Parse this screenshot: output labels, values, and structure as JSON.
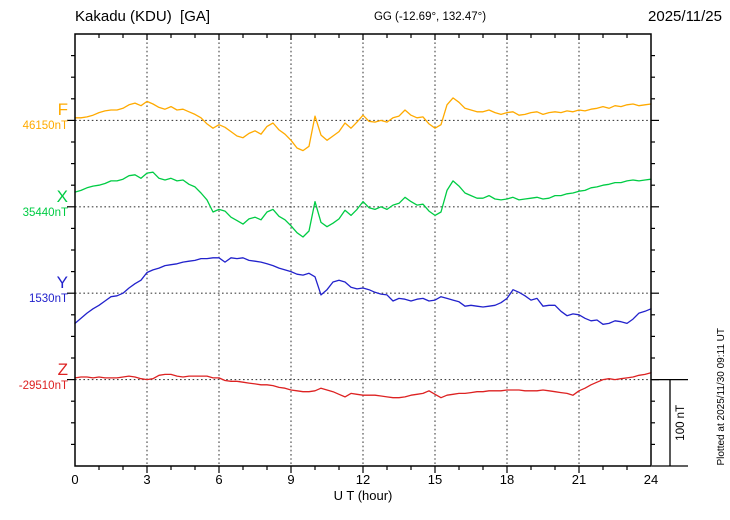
{
  "header": {
    "station": "Kakadu (KDU)  [GA]",
    "geographic": "GG (-12.69°, 132.47°)",
    "date": "2025/11/25"
  },
  "footer": {
    "plotted_note": "Plotted at 2025/11/30 09:11 UT"
  },
  "scale_bar": {
    "label": "100 nT",
    "span_nT": 100
  },
  "x_axis": {
    "label": "U T (hour)",
    "major_ticks": [
      0,
      3,
      6,
      9,
      12,
      15,
      18,
      21,
      24
    ],
    "minor_step_hours": 1,
    "range_hours": [
      0,
      24
    ]
  },
  "style": {
    "axis_color": "#000000",
    "grid_color": "#444444",
    "grid_style": "dotted"
  },
  "chart_data": {
    "type": "line",
    "title": "Kakadu (KDU)  [GA]",
    "subtitle": "GG (-12.69°, 132.47°)",
    "date": "2025/11/25",
    "xlabel": "U T (hour)",
    "x_range_hours": [
      0,
      24
    ],
    "x_sample_step_hours": 0.25,
    "y_divisions_nT": 25,
    "scalebar_nT": 100,
    "grid": "dotted vertical lines every 3 h; dotted horizontal line at each channel baseline",
    "legend_position": "left margin, one colored label per channel",
    "note": "offsets_nT are deviations from baseline_nT, sampled every 0.25 hour, 97 points per channel",
    "series": [
      {
        "id": "F",
        "label": "F",
        "baseline_label": "46150nT",
        "baseline_nT": 46150,
        "color": "#ffaa00",
        "offsets_nT": [
          3,
          3,
          4,
          6,
          9,
          11,
          12,
          12,
          14,
          18,
          20,
          17,
          22,
          19,
          15,
          13,
          16,
          12,
          13,
          10,
          7,
          3,
          -4,
          -9,
          -5,
          -8,
          -13,
          -18,
          -20,
          -15,
          -12,
          -16,
          -7,
          -3,
          -11,
          -16,
          -23,
          -32,
          -35,
          -30,
          5,
          -17,
          -23,
          -18,
          -13,
          -3,
          -9,
          -2,
          6,
          -1,
          -2,
          0,
          -2,
          3,
          5,
          12,
          6,
          3,
          4,
          -4,
          -9,
          -5,
          18,
          26,
          21,
          14,
          12,
          10,
          10,
          12,
          9,
          7,
          9,
          10,
          6,
          7,
          9,
          10,
          7,
          9,
          10,
          9,
          11,
          10,
          12,
          11,
          13,
          14,
          16,
          14,
          17,
          16,
          18,
          19,
          17,
          18,
          19
        ]
      },
      {
        "id": "X",
        "label": "X",
        "baseline_label": "35440nT",
        "baseline_nT": 35440,
        "color": "#00cc44",
        "offsets_nT": [
          17,
          19,
          22,
          24,
          25,
          27,
          30,
          30,
          32,
          36,
          37,
          33,
          39,
          40,
          33,
          31,
          33,
          30,
          31,
          26,
          23,
          16,
          8,
          -6,
          -3,
          -5,
          -12,
          -16,
          -20,
          -14,
          -12,
          -15,
          -6,
          -3,
          -11,
          -15,
          -22,
          -30,
          -35,
          -28,
          6,
          -18,
          -23,
          -19,
          -14,
          -4,
          -10,
          -3,
          6,
          -1,
          -3,
          0,
          -3,
          2,
          4,
          11,
          6,
          2,
          3,
          -5,
          -10,
          -6,
          19,
          30,
          24,
          16,
          13,
          10,
          10,
          13,
          9,
          8,
          9,
          11,
          8,
          9,
          10,
          11,
          9,
          10,
          13,
          13,
          15,
          16,
          18,
          19,
          22,
          23,
          25,
          26,
          28,
          28,
          30,
          31,
          30,
          31,
          32
        ]
      },
      {
        "id": "Y",
        "label": "Y",
        "baseline_label": "1530nT",
        "baseline_nT": 1530,
        "color": "#2222cc",
        "offsets_nT": [
          -35,
          -29,
          -23,
          -18,
          -14,
          -9,
          -4,
          -3,
          0,
          6,
          11,
          15,
          24,
          27,
          29,
          32,
          33,
          34,
          36,
          37,
          38,
          40,
          40,
          41,
          41,
          36,
          41,
          40,
          41,
          38,
          37,
          36,
          34,
          32,
          29,
          27,
          25,
          22,
          21,
          23,
          19,
          -2,
          4,
          13,
          15,
          13,
          7,
          5,
          6,
          4,
          1,
          -1,
          -2,
          -9,
          -6,
          -7,
          -9,
          -7,
          -6,
          -9,
          -8,
          -4,
          -6,
          -8,
          -10,
          -15,
          -14,
          -15,
          -16,
          -15,
          -14,
          -11,
          -6,
          4,
          1,
          -3,
          -8,
          -6,
          -15,
          -14,
          -14,
          -21,
          -26,
          -24,
          -25,
          -29,
          -32,
          -31,
          -36,
          -35,
          -32,
          -33,
          -35,
          -30,
          -23,
          -21,
          -18
        ]
      },
      {
        "id": "Z",
        "label": "Z",
        "baseline_label": "-29510nT",
        "baseline_nT": -29510,
        "color": "#dd2222",
        "offsets_nT": [
          2,
          3,
          3,
          2,
          3,
          2,
          2,
          2,
          3,
          4,
          3,
          1,
          0,
          1,
          5,
          6,
          6,
          4,
          3,
          4,
          4,
          4,
          4,
          2,
          2,
          -1,
          -2,
          -2,
          -3,
          -4,
          -5,
          -6,
          -6,
          -7,
          -9,
          -10,
          -12,
          -13,
          -14,
          -14,
          -13,
          -10,
          -12,
          -14,
          -17,
          -20,
          -16,
          -17,
          -18,
          -18,
          -18,
          -19,
          -20,
          -21,
          -21,
          -20,
          -18,
          -17,
          -16,
          -13,
          -17,
          -21,
          -18,
          -17,
          -16,
          -16,
          -15,
          -14,
          -14,
          -13,
          -13,
          -13,
          -12,
          -12,
          -12,
          -13,
          -13,
          -13,
          -12,
          -13,
          -14,
          -15,
          -16,
          -18,
          -13,
          -10,
          -6,
          -3,
          0,
          1,
          0,
          1,
          2,
          3,
          5,
          6,
          8
        ]
      }
    ]
  }
}
